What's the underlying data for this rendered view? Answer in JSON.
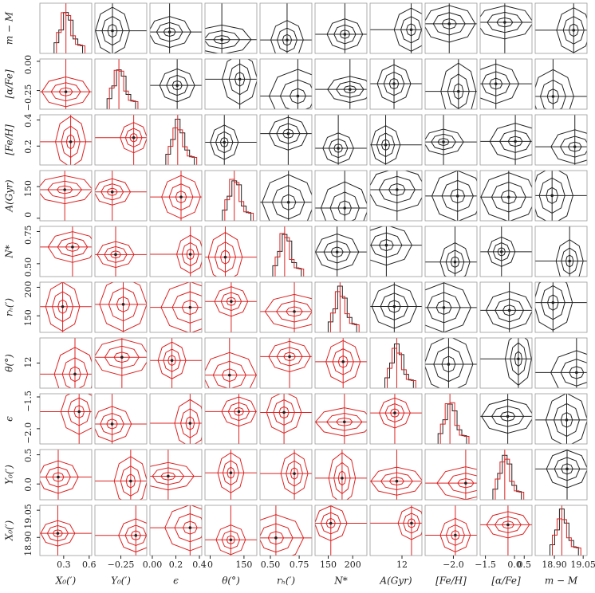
{
  "chart_data": {
    "type": "corner",
    "columns": [
      {
        "label": "X₀(′)",
        "xlim": [
          0.02,
          0.63
        ],
        "xticks": [
          0.3,
          0.6
        ]
      },
      {
        "label": "Y₀(′)",
        "xlim": [
          -0.45,
          -0.05
        ],
        "xticks": [
          {
            "value": -0.25,
            "label": "−0.25"
          }
        ]
      },
      {
        "label": "ϵ",
        "xlim": [
          -0.02,
          0.42
        ],
        "xticks": [
          {
            "value": 0,
            "label": "0.00"
          },
          0.2,
          0.4
        ]
      },
      {
        "label": "θ(°)",
        "xlim": [
          -23,
          207
        ],
        "xticks": [
          0,
          150
        ]
      },
      {
        "label": "rₕ(′)",
        "xlim": [
          0.41,
          0.86
        ],
        "xticks": [
          {
            "value": 0.5,
            "label": "0.50"
          },
          0.75
        ]
      },
      {
        "label": "N*",
        "xlim": [
          123,
          229
        ],
        "xticks": [
          150,
          200
        ]
      },
      {
        "label": "A(Gyr)",
        "xlim": [
          4,
          17
        ],
        "xticks": [
          12
        ]
      },
      {
        "label": "[Fe/H]",
        "xlim": [
          -2.6,
          -1.5
        ],
        "xticks": [
          {
            "value": -2,
            "label": "−2.0"
          }
        ]
      },
      {
        "label": "[α/Fe]",
        "xlim": [
          -1.77,
          0.9
        ],
        "xticks": [
          {
            "value": -1.5,
            "label": "−1.5"
          },
          {
            "value": 0,
            "label": "0.0"
          },
          0.5
        ]
      },
      {
        "label": "m − M",
        "xlim": [
          18.8,
          19.07
        ],
        "xticks": [
          {
            "value": 18.9,
            "label": "18.90"
          },
          19.05
        ]
      }
    ],
    "rows": [
      {
        "label": "m − M",
        "ylim": [
          0,
          1
        ],
        "yticks": []
      },
      {
        "label": "[α/Fe]",
        "ylim": [
          -0.41,
          0.02
        ],
        "yticks": [
          {
            "value": 0,
            "label": "0.00"
          },
          {
            "value": -0.25,
            "label": "−0.25"
          }
        ]
      },
      {
        "label": "[Fe/H]",
        "ylim": [
          0.055,
          0.44
        ],
        "yticks": [
          0.4,
          0.2
        ]
      },
      {
        "label": "A(Gyr)",
        "ylim": [
          -12,
          226
        ],
        "yticks": [
          150,
          0
        ]
      },
      {
        "label": "N*",
        "ylim": [
          0.4,
          0.79
        ],
        "yticks": [
          0.75,
          {
            "value": 0.5,
            "label": "0.50"
          }
        ]
      },
      {
        "label": "rₕ(′)",
        "ylim": [
          121,
          209
        ],
        "yticks": [
          200,
          150
        ]
      },
      {
        "label": "θ(°)",
        "ylim": [
          8,
          16
        ],
        "yticks": [
          12
        ]
      },
      {
        "label": "ϵ",
        "ylim": [
          -2.24,
          -1.45
        ],
        "yticks": [
          {
            "value": -1.5,
            "label": "−1.5"
          },
          {
            "value": -2,
            "label": "−2.0"
          }
        ]
      },
      {
        "label": "Y₀(′)",
        "ylim": [
          -0.27,
          0.59
        ],
        "yticks": [
          0.5,
          {
            "value": 0,
            "label": "0.0"
          }
        ]
      },
      {
        "label": "X₀(′)",
        "ylim": [
          18.8,
          19.077
        ],
        "yticks": [
          19.05,
          {
            "value": 18.9,
            "label": "18.90"
          }
        ]
      }
    ]
  }
}
